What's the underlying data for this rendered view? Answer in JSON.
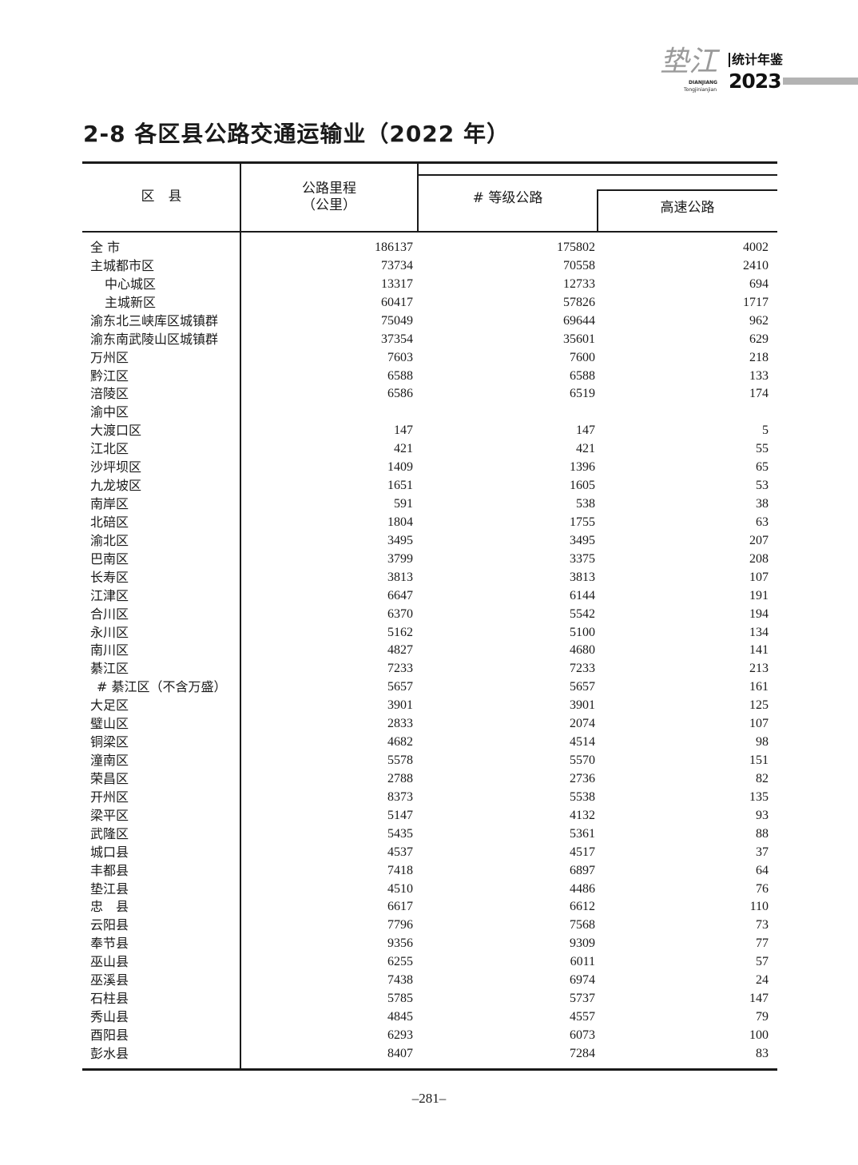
{
  "header": {
    "logo_script": "垫江",
    "logo_pinyin": "DIANJIANG",
    "logo_pinyin2": "Tongjinianjian",
    "logo_cn": "统计年鉴",
    "logo_year": "2023"
  },
  "title": "2-8  各区县公路交通运输业（2022 年）",
  "table": {
    "columns": {
      "region": "区　县",
      "road_mileage": "公路里程",
      "road_mileage_unit": "（公里）",
      "graded_road": "# 等级公路",
      "expressway": "高速公路"
    },
    "rows": [
      {
        "name": "全  市",
        "level": 0,
        "mileage": "186137",
        "graded": "175802",
        "express": "4002"
      },
      {
        "name": "主城都市区",
        "level": 0,
        "mileage": "73734",
        "graded": "70558",
        "express": "2410"
      },
      {
        "name": "中心城区",
        "level": 1,
        "mileage": "13317",
        "graded": "12733",
        "express": "694"
      },
      {
        "name": "主城新区",
        "level": 1,
        "mileage": "60417",
        "graded": "57826",
        "express": "1717"
      },
      {
        "name": "渝东北三峡库区城镇群",
        "level": 0,
        "mileage": "75049",
        "graded": "69644",
        "express": "962"
      },
      {
        "name": "渝东南武陵山区城镇群",
        "level": 0,
        "mileage": "37354",
        "graded": "35601",
        "express": "629"
      },
      {
        "name": "万州区",
        "level": 0,
        "mileage": "7603",
        "graded": "7600",
        "express": "218"
      },
      {
        "name": "黔江区",
        "level": 0,
        "mileage": "6588",
        "graded": "6588",
        "express": "133"
      },
      {
        "name": "涪陵区",
        "level": 0,
        "mileage": "6586",
        "graded": "6519",
        "express": "174"
      },
      {
        "name": "渝中区",
        "level": 0,
        "mileage": "",
        "graded": "",
        "express": ""
      },
      {
        "name": "大渡口区",
        "level": 0,
        "mileage": "147",
        "graded": "147",
        "express": "5"
      },
      {
        "name": "江北区",
        "level": 0,
        "mileage": "421",
        "graded": "421",
        "express": "55"
      },
      {
        "name": "沙坪坝区",
        "level": 0,
        "mileage": "1409",
        "graded": "1396",
        "express": "65"
      },
      {
        "name": "九龙坡区",
        "level": 0,
        "mileage": "1651",
        "graded": "1605",
        "express": "53"
      },
      {
        "name": "南岸区",
        "level": 0,
        "mileage": "591",
        "graded": "538",
        "express": "38"
      },
      {
        "name": "北碚区",
        "level": 0,
        "mileage": "1804",
        "graded": "1755",
        "express": "63"
      },
      {
        "name": "渝北区",
        "level": 0,
        "mileage": "3495",
        "graded": "3495",
        "express": "207"
      },
      {
        "name": "巴南区",
        "level": 0,
        "mileage": "3799",
        "graded": "3375",
        "express": "208"
      },
      {
        "name": "长寿区",
        "level": 0,
        "mileage": "3813",
        "graded": "3813",
        "express": "107"
      },
      {
        "name": "江津区",
        "level": 0,
        "mileage": "6647",
        "graded": "6144",
        "express": "191"
      },
      {
        "name": "合川区",
        "level": 0,
        "mileage": "6370",
        "graded": "5542",
        "express": "194"
      },
      {
        "name": "永川区",
        "level": 0,
        "mileage": "5162",
        "graded": "5100",
        "express": "134"
      },
      {
        "name": "南川区",
        "level": 0,
        "mileage": "4827",
        "graded": "4680",
        "express": "141"
      },
      {
        "name": "綦江区",
        "level": 0,
        "mileage": "7233",
        "graded": "7233",
        "express": "213"
      },
      {
        "name": "# 綦江区（不含万盛）",
        "level": 2,
        "mileage": "5657",
        "graded": "5657",
        "express": "161"
      },
      {
        "name": "大足区",
        "level": 0,
        "mileage": "3901",
        "graded": "3901",
        "express": "125"
      },
      {
        "name": "璧山区",
        "level": 0,
        "mileage": "2833",
        "graded": "2074",
        "express": "107"
      },
      {
        "name": "铜梁区",
        "level": 0,
        "mileage": "4682",
        "graded": "4514",
        "express": "98"
      },
      {
        "name": "潼南区",
        "level": 0,
        "mileage": "5578",
        "graded": "5570",
        "express": "151"
      },
      {
        "name": "荣昌区",
        "level": 0,
        "mileage": "2788",
        "graded": "2736",
        "express": "82"
      },
      {
        "name": "开州区",
        "level": 0,
        "mileage": "8373",
        "graded": "5538",
        "express": "135"
      },
      {
        "name": "梁平区",
        "level": 0,
        "mileage": "5147",
        "graded": "4132",
        "express": "93"
      },
      {
        "name": "武隆区",
        "level": 0,
        "mileage": "5435",
        "graded": "5361",
        "express": "88"
      },
      {
        "name": "城口县",
        "level": 0,
        "mileage": "4537",
        "graded": "4517",
        "express": "37"
      },
      {
        "name": "丰都县",
        "level": 0,
        "mileage": "7418",
        "graded": "6897",
        "express": "64"
      },
      {
        "name": "垫江县",
        "level": 0,
        "mileage": "4510",
        "graded": "4486",
        "express": "76"
      },
      {
        "name": "忠　县",
        "level": 0,
        "mileage": "6617",
        "graded": "6612",
        "express": "110"
      },
      {
        "name": "云阳县",
        "level": 0,
        "mileage": "7796",
        "graded": "7568",
        "express": "73"
      },
      {
        "name": "奉节县",
        "level": 0,
        "mileage": "9356",
        "graded": "9309",
        "express": "77"
      },
      {
        "name": "巫山县",
        "level": 0,
        "mileage": "6255",
        "graded": "6011",
        "express": "57"
      },
      {
        "name": "巫溪县",
        "level": 0,
        "mileage": "7438",
        "graded": "6974",
        "express": "24"
      },
      {
        "name": "石柱县",
        "level": 0,
        "mileage": "5785",
        "graded": "5737",
        "express": "147"
      },
      {
        "name": "秀山县",
        "level": 0,
        "mileage": "4845",
        "graded": "4557",
        "express": "79"
      },
      {
        "name": "酉阳县",
        "level": 0,
        "mileage": "6293",
        "graded": "6073",
        "express": "100"
      },
      {
        "name": "彭水县",
        "level": 0,
        "mileage": "8407",
        "graded": "7284",
        "express": "83"
      }
    ]
  },
  "page_number": "–281–"
}
